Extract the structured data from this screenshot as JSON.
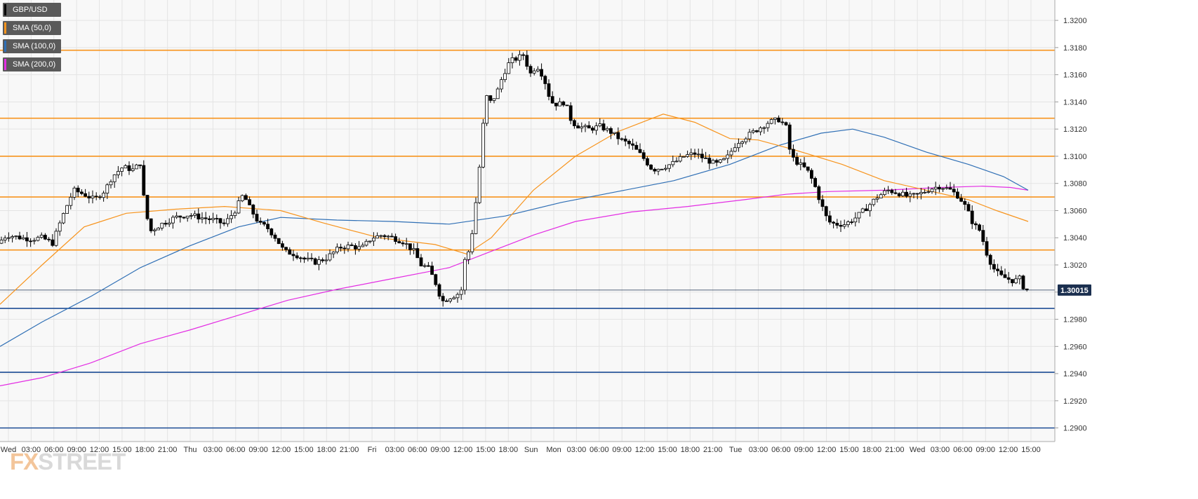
{
  "chart_data": {
    "type": "candlestick",
    "title": "",
    "symbol": "GBP/USD",
    "legend": [
      {
        "label": "GBP/USD",
        "color": "#000000"
      },
      {
        "label": "SMA (50,0)",
        "color": "#f7941d"
      },
      {
        "label": "SMA (100,0)",
        "color": "#2f6fb5"
      },
      {
        "label": "SMA (200,0)",
        "color": "#e32de3"
      }
    ],
    "y_range": [
      1.289,
      1.3215
    ],
    "y_ticks": [
      "1.2900",
      "1.2920",
      "1.2940",
      "1.2960",
      "1.2980",
      "1.3000",
      "1.3020",
      "1.3040",
      "1.3060",
      "1.3080",
      "1.3100",
      "1.3120",
      "1.3140",
      "1.3160",
      "1.3180",
      "1.3200"
    ],
    "x_ticks": [
      "Wed",
      "03:00",
      "06:00",
      "09:00",
      "12:00",
      "15:00",
      "18:00",
      "21:00",
      "Thu",
      "03:00",
      "06:00",
      "09:00",
      "12:00",
      "15:00",
      "18:00",
      "21:00",
      "Fri",
      "03:00",
      "06:00",
      "09:00",
      "12:00",
      "15:00",
      "18:00",
      "Sun",
      "Mon",
      "03:00",
      "06:00",
      "09:00",
      "12:00",
      "15:00",
      "18:00",
      "21:00",
      "Tue",
      "03:00",
      "06:00",
      "09:00",
      "12:00",
      "15:00",
      "18:00",
      "21:00",
      "Wed",
      "03:00",
      "06:00",
      "09:00",
      "12:00",
      "15:00"
    ],
    "current_price": "1.30015",
    "current_price_value": 1.30015,
    "resistance_levels": [
      1.3178,
      1.3128,
      1.31,
      1.307,
      1.3031
    ],
    "support_levels": [
      1.2988,
      1.2941,
      1.29
    ],
    "price_path": [
      [
        0,
        1.3035
      ],
      [
        15,
        1.3042
      ],
      [
        35,
        1.304
      ],
      [
        50,
        1.3039
      ],
      [
        65,
        1.304
      ],
      [
        80,
        1.3036
      ],
      [
        90,
        1.305
      ],
      [
        100,
        1.3063
      ],
      [
        110,
        1.3075
      ],
      [
        125,
        1.3072
      ],
      [
        140,
        1.3068
      ],
      [
        155,
        1.3075
      ],
      [
        165,
        1.3085
      ],
      [
        180,
        1.3092
      ],
      [
        195,
        1.309
      ],
      [
        205,
        1.3095
      ],
      [
        212,
        1.306
      ],
      [
        220,
        1.3045
      ],
      [
        235,
        1.305
      ],
      [
        255,
        1.3055
      ],
      [
        275,
        1.3057
      ],
      [
        290,
        1.3055
      ],
      [
        310,
        1.3053
      ],
      [
        325,
        1.305
      ],
      [
        340,
        1.306
      ],
      [
        352,
        1.3072
      ],
      [
        360,
        1.3063
      ],
      [
        375,
        1.305
      ],
      [
        385,
        1.3048
      ],
      [
        398,
        1.304
      ],
      [
        410,
        1.303
      ],
      [
        425,
        1.3028
      ],
      [
        440,
        1.3024
      ],
      [
        455,
        1.3022
      ],
      [
        470,
        1.3025
      ],
      [
        490,
        1.3033
      ],
      [
        505,
        1.3034
      ],
      [
        520,
        1.3032
      ],
      [
        535,
        1.304
      ],
      [
        550,
        1.3042
      ],
      [
        565,
        1.304
      ],
      [
        580,
        1.3037
      ],
      [
        595,
        1.303
      ],
      [
        605,
        1.302
      ],
      [
        615,
        1.3018
      ],
      [
        625,
        1.3008
      ],
      [
        635,
        1.2993
      ],
      [
        645,
        1.2996
      ],
      [
        655,
        1.2998
      ],
      [
        662,
        1.3
      ],
      [
        668,
        1.3025
      ],
      [
        675,
        1.3032
      ],
      [
        682,
        1.306
      ],
      [
        690,
        1.31
      ],
      [
        697,
        1.3145
      ],
      [
        704,
        1.314
      ],
      [
        712,
        1.3145
      ],
      [
        722,
        1.316
      ],
      [
        732,
        1.317
      ],
      [
        742,
        1.3172
      ],
      [
        752,
        1.3175
      ],
      [
        760,
        1.316
      ],
      [
        770,
        1.3167
      ],
      [
        780,
        1.3158
      ],
      [
        790,
        1.314
      ],
      [
        800,
        1.3138
      ],
      [
        810,
        1.314
      ],
      [
        820,
        1.3125
      ],
      [
        830,
        1.3122
      ],
      [
        845,
        1.312
      ],
      [
        860,
        1.3122
      ],
      [
        875,
        1.3118
      ],
      [
        890,
        1.3112
      ],
      [
        905,
        1.3108
      ],
      [
        920,
        1.31
      ],
      [
        935,
        1.309
      ],
      [
        950,
        1.3092
      ],
      [
        965,
        1.3095
      ],
      [
        980,
        1.31
      ],
      [
        995,
        1.3102
      ],
      [
        1010,
        1.3098
      ],
      [
        1025,
        1.3094
      ],
      [
        1040,
        1.3098
      ],
      [
        1055,
        1.311
      ],
      [
        1070,
        1.3115
      ],
      [
        1085,
        1.312
      ],
      [
        1100,
        1.3125
      ],
      [
        1115,
        1.3127
      ],
      [
        1125,
        1.3122
      ],
      [
        1132,
        1.31
      ],
      [
        1142,
        1.3095
      ],
      [
        1155,
        1.309
      ],
      [
        1165,
        1.308
      ],
      [
        1175,
        1.3065
      ],
      [
        1185,
        1.3052
      ],
      [
        1195,
        1.305
      ],
      [
        1210,
        1.305
      ],
      [
        1225,
        1.3055
      ],
      [
        1240,
        1.3062
      ],
      [
        1255,
        1.307
      ],
      [
        1270,
        1.3075
      ],
      [
        1285,
        1.3073
      ],
      [
        1300,
        1.307
      ],
      [
        1315,
        1.3072
      ],
      [
        1330,
        1.3076
      ],
      [
        1345,
        1.3078
      ],
      [
        1360,
        1.3075
      ],
      [
        1372,
        1.307
      ],
      [
        1382,
        1.3062
      ],
      [
        1392,
        1.305
      ],
      [
        1402,
        1.3045
      ],
      [
        1410,
        1.303
      ],
      [
        1420,
        1.3018
      ],
      [
        1430,
        1.3012
      ],
      [
        1440,
        1.301
      ],
      [
        1450,
        1.3008
      ],
      [
        1458,
        1.301
      ],
      [
        1465,
        1.3002
      ]
    ],
    "sma50": [
      [
        0,
        1.2991
      ],
      [
        60,
        1.302
      ],
      [
        120,
        1.3048
      ],
      [
        180,
        1.3058
      ],
      [
        250,
        1.3061
      ],
      [
        320,
        1.3063
      ],
      [
        400,
        1.306
      ],
      [
        460,
        1.3051
      ],
      [
        540,
        1.304
      ],
      [
        620,
        1.3035
      ],
      [
        665,
        1.3028
      ],
      [
        700,
        1.304
      ],
      [
        760,
        1.3075
      ],
      [
        820,
        1.31
      ],
      [
        880,
        1.3118
      ],
      [
        945,
        1.3131
      ],
      [
        990,
        1.3125
      ],
      [
        1040,
        1.3113
      ],
      [
        1080,
        1.3112
      ],
      [
        1130,
        1.3105
      ],
      [
        1200,
        1.3094
      ],
      [
        1260,
        1.3082
      ],
      [
        1320,
        1.3075
      ],
      [
        1380,
        1.3068
      ],
      [
        1420,
        1.306
      ],
      [
        1465,
        1.3052
      ]
    ],
    "sma100": [
      [
        0,
        1.296
      ],
      [
        60,
        1.2978
      ],
      [
        130,
        1.2997
      ],
      [
        200,
        1.3018
      ],
      [
        270,
        1.3034
      ],
      [
        340,
        1.3048
      ],
      [
        400,
        1.3055
      ],
      [
        480,
        1.3053
      ],
      [
        560,
        1.3052
      ],
      [
        640,
        1.305
      ],
      [
        720,
        1.3056
      ],
      [
        800,
        1.3066
      ],
      [
        880,
        1.3074
      ],
      [
        960,
        1.3082
      ],
      [
        1040,
        1.3094
      ],
      [
        1110,
        1.3108
      ],
      [
        1170,
        1.3117
      ],
      [
        1215,
        1.312
      ],
      [
        1260,
        1.3114
      ],
      [
        1320,
        1.3103
      ],
      [
        1380,
        1.3094
      ],
      [
        1430,
        1.3085
      ],
      [
        1465,
        1.3075
      ]
    ],
    "sma200": [
      [
        0,
        1.2931
      ],
      [
        60,
        1.2937
      ],
      [
        130,
        1.2948
      ],
      [
        200,
        1.2962
      ],
      [
        270,
        1.2972
      ],
      [
        340,
        1.2983
      ],
      [
        410,
        1.2994
      ],
      [
        480,
        1.3002
      ],
      [
        560,
        1.301
      ],
      [
        640,
        1.3018
      ],
      [
        700,
        1.303
      ],
      [
        760,
        1.3042
      ],
      [
        820,
        1.3052
      ],
      [
        900,
        1.3059
      ],
      [
        980,
        1.3063
      ],
      [
        1060,
        1.3068
      ],
      [
        1120,
        1.3072
      ],
      [
        1180,
        1.3074
      ],
      [
        1260,
        1.3075
      ],
      [
        1340,
        1.3077
      ],
      [
        1400,
        1.3078
      ],
      [
        1440,
        1.3077
      ],
      [
        1465,
        1.3075
      ]
    ]
  },
  "watermark": {
    "part1": "FX",
    "part2": "STREET"
  }
}
